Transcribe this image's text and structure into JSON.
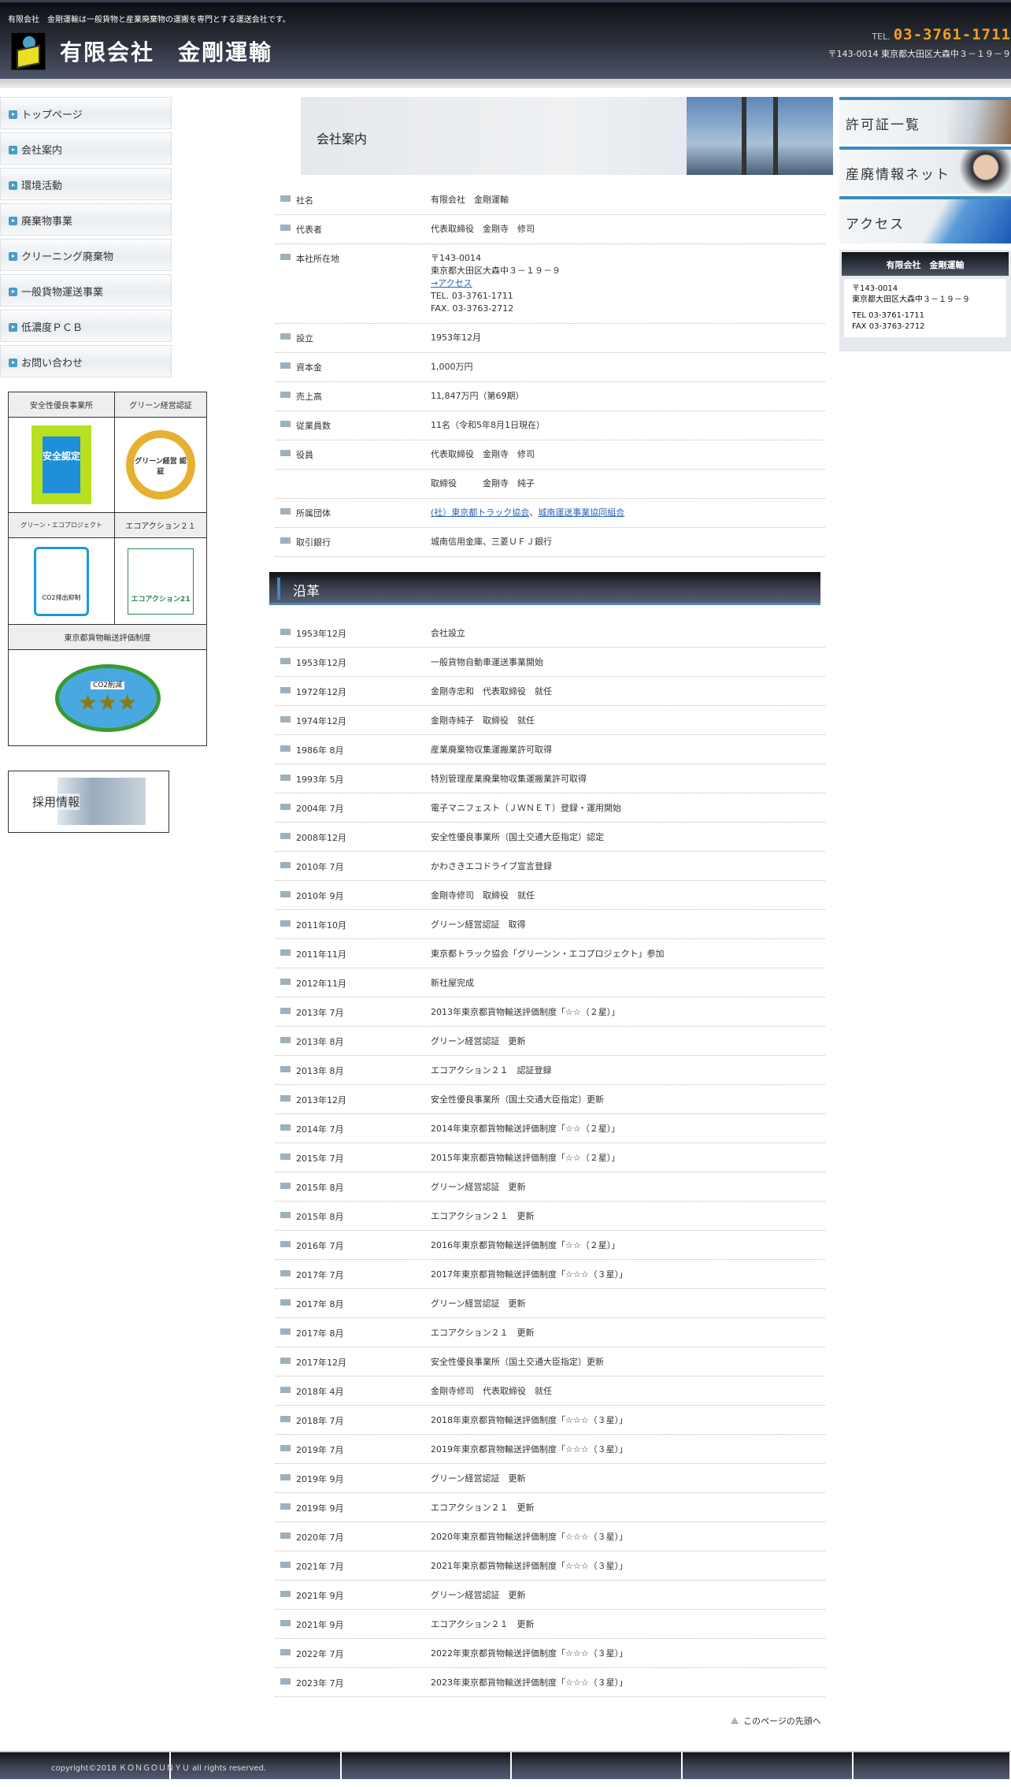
{
  "header": {
    "tagline": "有限会社　金剛運輸は一般貨物と産業廃棄物の運搬を専門とする運送会社です。",
    "company": "有限会社　金剛運輸",
    "tel_label": "TEL.",
    "tel": "03-3761-1711",
    "address": "〒143-0014 東京都大田区大森中３－１９－９"
  },
  "nav": [
    {
      "label": "トップページ"
    },
    {
      "label": "会社案内"
    },
    {
      "label": "環境活動"
    },
    {
      "label": "廃棄物事業"
    },
    {
      "label": "クリーニング廃棄物"
    },
    {
      "label": "一般貨物運送事業"
    },
    {
      "label": "低濃度ＰＣＢ"
    },
    {
      "label": "お問い合わせ"
    }
  ],
  "certs": {
    "c1": "安全性優良事業所",
    "c2": "グリーン経営認証",
    "c3": "グリーン・エコプロジェクト",
    "c4": "エコアクション２１",
    "c5": "東京都貨物輸送評価制度",
    "badge1": "安全認定",
    "badge2": "グリーン経営 認証",
    "badge3": "CO2排出抑制",
    "badge4": "エコアクション21",
    "badge5": "CO2削減"
  },
  "recruit": "採用情報",
  "page_title": "会社案内",
  "info": [
    {
      "label": "社名",
      "value": "有限会社　金剛運輸"
    },
    {
      "label": "代表者",
      "value": "代表取締役　金剛寺　修司"
    },
    {
      "label": "本社所在地",
      "zip": "〒143-0014",
      "addr": "東京都大田区大森中３－１９－９",
      "access": "→アクセス",
      "tel": "TEL. 03-3761-1711",
      "fax": "FAX. 03-3763-2712"
    },
    {
      "label": "設立",
      "value": "1953年12月"
    },
    {
      "label": "資本金",
      "value": "1,000万円"
    },
    {
      "label": "売上高",
      "value": "11,847万円（第69期）"
    },
    {
      "label": "従業員数",
      "value": "11名（令和5年8月1日現在）"
    },
    {
      "label": "役員",
      "value": "代表取締役　金剛寺　修司"
    },
    {
      "label": "",
      "value": "取締役　　　金剛寺　純子"
    },
    {
      "label": "所属団体",
      "link1": "(社）東京都トラック協会",
      "sep": "、",
      "link2": "城南運送事業協同組合"
    },
    {
      "label": "取引銀行",
      "value": "城南信用金庫、三菱ＵＦＪ銀行"
    }
  ],
  "history_title": "沿革",
  "history": [
    [
      "1953年12月",
      "会社設立"
    ],
    [
      "1953年12月",
      "一般貨物自動車運送事業開始"
    ],
    [
      "1972年12月",
      "金剛寺忠和　代表取締役　就任"
    ],
    [
      "1974年12月",
      "金剛寺純子　取締役　就任"
    ],
    [
      "1986年 8月",
      "産業廃棄物収集運搬業許可取得"
    ],
    [
      "1993年 5月",
      "特別管理産業廃棄物収集運搬業許可取得"
    ],
    [
      "2004年 7月",
      "電子マニフェスト（ＪＷＮＥＴ）登録・運用開始"
    ],
    [
      "2008年12月",
      "安全性優良事業所（国土交通大臣指定）認定"
    ],
    [
      "2010年 7月",
      "かわさきエコドライブ宣言登録"
    ],
    [
      "2010年 9月",
      "金剛寺修司　取締役　就任"
    ],
    [
      "2011年10月",
      "グリーン経営認証　取得"
    ],
    [
      "2011年11月",
      "東京都トラック協会「グリーンン・エコプロジェクト」参加"
    ],
    [
      "2012年11月",
      "新社屋完成"
    ],
    [
      "2013年 7月",
      "2013年東京都貨物輸送評価制度「☆☆（２星）」"
    ],
    [
      "2013年 8月",
      "グリーン経営認証　更新"
    ],
    [
      "2013年 8月",
      "エコアクション２１　認証登録"
    ],
    [
      "2013年12月",
      "安全性優良事業所（国土交通大臣指定）更新"
    ],
    [
      "2014年 7月",
      "2014年東京都貨物輸送評価制度「☆☆（２星）」"
    ],
    [
      "2015年 7月",
      "2015年東京都貨物輸送評価制度「☆☆（２星）」"
    ],
    [
      "2015年 8月",
      "グリーン経営認証　更新"
    ],
    [
      "2015年 8月",
      "エコアクション２１　更新"
    ],
    [
      "2016年 7月",
      "2016年東京都貨物輸送評価制度「☆☆（２星）」"
    ],
    [
      "2017年 7月",
      "2017年東京都貨物輸送評価制度「☆☆☆（３星）」"
    ],
    [
      "2017年 8月",
      "グリーン経営認証　更新"
    ],
    [
      "2017年 8月",
      "エコアクション２１　更新"
    ],
    [
      "2017年12月",
      "安全性優良事業所（国土交通大臣指定）更新"
    ],
    [
      "2018年 4月",
      "金剛寺修司　代表取締役　就任"
    ],
    [
      "2018年 7月",
      "2018年東京都貨物輸送評価制度「☆☆☆（３星）」"
    ],
    [
      "2019年 7月",
      "2019年東京都貨物輸送評価制度「☆☆☆（３星）」"
    ],
    [
      "2019年 9月",
      "グリーン経営認証　更新"
    ],
    [
      "2019年 9月",
      "エコアクション２１　更新"
    ],
    [
      "2020年 7月",
      "2020年東京都貨物輸送評価制度「☆☆☆（３星）」"
    ],
    [
      "2021年 7月",
      "2021年東京都貨物輸送評価制度「☆☆☆（３星）」"
    ],
    [
      "2021年 9月",
      "グリーン経営認証　更新"
    ],
    [
      "2021年 9月",
      "エコアクション２１　更新"
    ],
    [
      "2022年 7月",
      "2022年東京都貨物輸送評価制度「☆☆☆（３星）」"
    ],
    [
      "2023年 7月",
      "2023年東京都貨物輸送評価制度「☆☆☆（３星）」"
    ]
  ],
  "page_top": "このページの先頭へ",
  "footer": {
    "copyright": "copyright©2018 ＫＯＮＧＯＵＮＹＵ all rights reserved."
  },
  "right": {
    "banners": [
      {
        "label": "許可証一覧"
      },
      {
        "label": "産廃情報ネット"
      },
      {
        "label": "アクセス"
      }
    ],
    "box_title": "有限会社　金剛運輸",
    "zip": "〒143-0014",
    "addr": "東京都大田区大森中３－１９－９",
    "tel": "TEL 03-3761-1711",
    "fax": "FAX 03-3763-2712"
  },
  "colors": {
    "accent": "#3a8cc0",
    "tel": "#f0a020",
    "link": "#2a63b8"
  }
}
